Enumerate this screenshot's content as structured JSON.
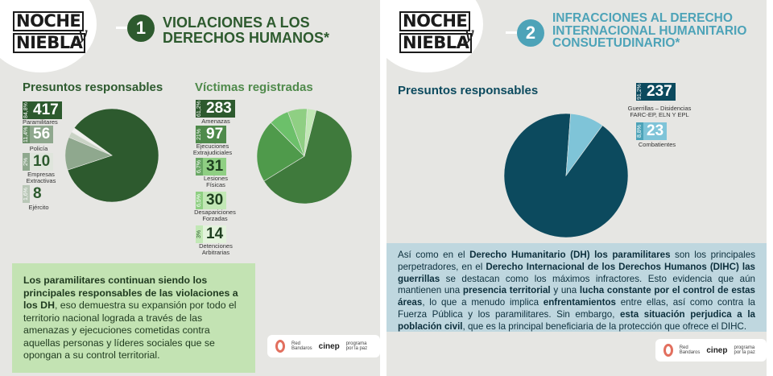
{
  "panel1": {
    "logo": {
      "line1": "NOCHE",
      "line2": "NIEBLA",
      "mark": "y"
    },
    "number": "1",
    "title_line1": "VIOLACIONES A LOS",
    "title_line2": "DERECHOS HUMANOS*",
    "responsables": {
      "label": "Presuntos responsables",
      "items": [
        {
          "pct": "84,8%",
          "value": "417",
          "caption": "Paramilitares"
        },
        {
          "pct": "11,4%",
          "value": "56",
          "caption": "Policía"
        },
        {
          "pct": "2%",
          "value": "10",
          "caption": "Empresas Extractivas"
        },
        {
          "pct": "1,6%",
          "value": "8",
          "caption": "Ejército"
        }
      ]
    },
    "victimas": {
      "label": "Víctimas registradas",
      "items": [
        {
          "pct": "61,2%",
          "value": "283",
          "caption": "Amenazas"
        },
        {
          "pct": "21%",
          "value": "97",
          "caption": "Ejecuciones Extrajudiciales"
        },
        {
          "pct": "6,7%",
          "value": "31",
          "caption": "Lesiones Físicas"
        },
        {
          "pct": "6,5%",
          "value": "30",
          "caption": "Desapariciones Forzadas"
        },
        {
          "pct": "3%",
          "value": "14",
          "caption": "Detenciones Arbitrarias"
        }
      ]
    },
    "text_parts": [
      {
        "t": "Los paramilitares continuan siendo los principales responsables de las violaciones a los DH",
        "b": true
      },
      {
        "t": ", eso demuestra su expansión por todo el territorio nacional lograda a través de las amenazas y ejecuciones cometidas contra aquellas personas y líderes sociales que se opongan a su control territorial.",
        "b": false
      }
    ],
    "footer": {
      "red": "Red Bandaros",
      "cinep": "cinep",
      "ppp": "programa por la paz"
    }
  },
  "panel2": {
    "logo": {
      "line1": "NOCHE",
      "line2": "NIEBLA",
      "mark": "y"
    },
    "number": "2",
    "title_line1": "INFRACCIONES AL DERECHO",
    "title_line2": "INTERNACIONAL HUMANITARIO",
    "title_line3": "CONSUETUDINARIO*",
    "responsables": {
      "label": "Presuntos responsables",
      "items": [
        {
          "pct": "91,2%",
          "value": "237",
          "caption": "Guerrillas – Disidencias FARC-EP, ELN Y EPL"
        },
        {
          "pct": "8,8%",
          "value": "23",
          "caption": "Combatientes"
        }
      ]
    },
    "text_parts": [
      {
        "t": "Así como en el ",
        "b": false
      },
      {
        "t": "Derecho Humanitario (DH) los paramilitares",
        "b": true
      },
      {
        "t": " son los principales perpetradores, en el ",
        "b": false
      },
      {
        "t": "Derecho Internacional de los Derechos Humanos (DIHC) las guerrillas",
        "b": true
      },
      {
        "t": " se destacan como los máximos infractores. Esto evidencia que aún mantienen una ",
        "b": false
      },
      {
        "t": "presencia territorial",
        "b": true
      },
      {
        "t": " y una ",
        "b": false
      },
      {
        "t": "lucha constante por el control de estas áreas",
        "b": true
      },
      {
        "t": ", lo que a menudo implica ",
        "b": false
      },
      {
        "t": "enfrentamientos",
        "b": true
      },
      {
        "t": " entre ellas, así como contra la Fuerza Pública y los paramilitares. Sin embargo, ",
        "b": false
      },
      {
        "t": "esta situación perjudica a la población civil",
        "b": true
      },
      {
        "t": ", que es la principal beneficiaria de la protección que ofrece el DIHC.",
        "b": false
      }
    ],
    "footer": {
      "red": "Red Bandaros",
      "cinep": "cinep",
      "ppp": "programa por la paz"
    }
  },
  "colors": {
    "dark_green": "#2d5a2e",
    "mid_green": "#4f8a4b",
    "light_green": "#8fcf83",
    "pale_green": "#c2e8b6",
    "text_green_box": "#c3e3b3",
    "navy": "#0c4a5e",
    "teal_title": "#4da3b8",
    "light_blue": "#7fc4d8",
    "blue_box": "#bfd7df"
  },
  "chart_data": [
    {
      "type": "pie",
      "title": "Presuntos responsables",
      "categories": [
        "Paramilitares",
        "Policía",
        "Empresas Extractivas",
        "Ejército"
      ],
      "values": [
        417,
        56,
        10,
        8
      ]
    },
    {
      "type": "pie",
      "title": "Víctimas registradas",
      "categories": [
        "Amenazas",
        "Ejecuciones Extrajudiciales",
        "Lesiones Físicas",
        "Desapariciones Forzadas",
        "Detenciones Arbitrarias"
      ],
      "values": [
        283,
        97,
        31,
        30,
        14
      ]
    },
    {
      "type": "pie",
      "title": "Presuntos responsables",
      "categories": [
        "Guerrillas – Disidencias FARC-EP, ELN Y EPL",
        "Combatientes"
      ],
      "values": [
        237,
        23
      ]
    }
  ]
}
